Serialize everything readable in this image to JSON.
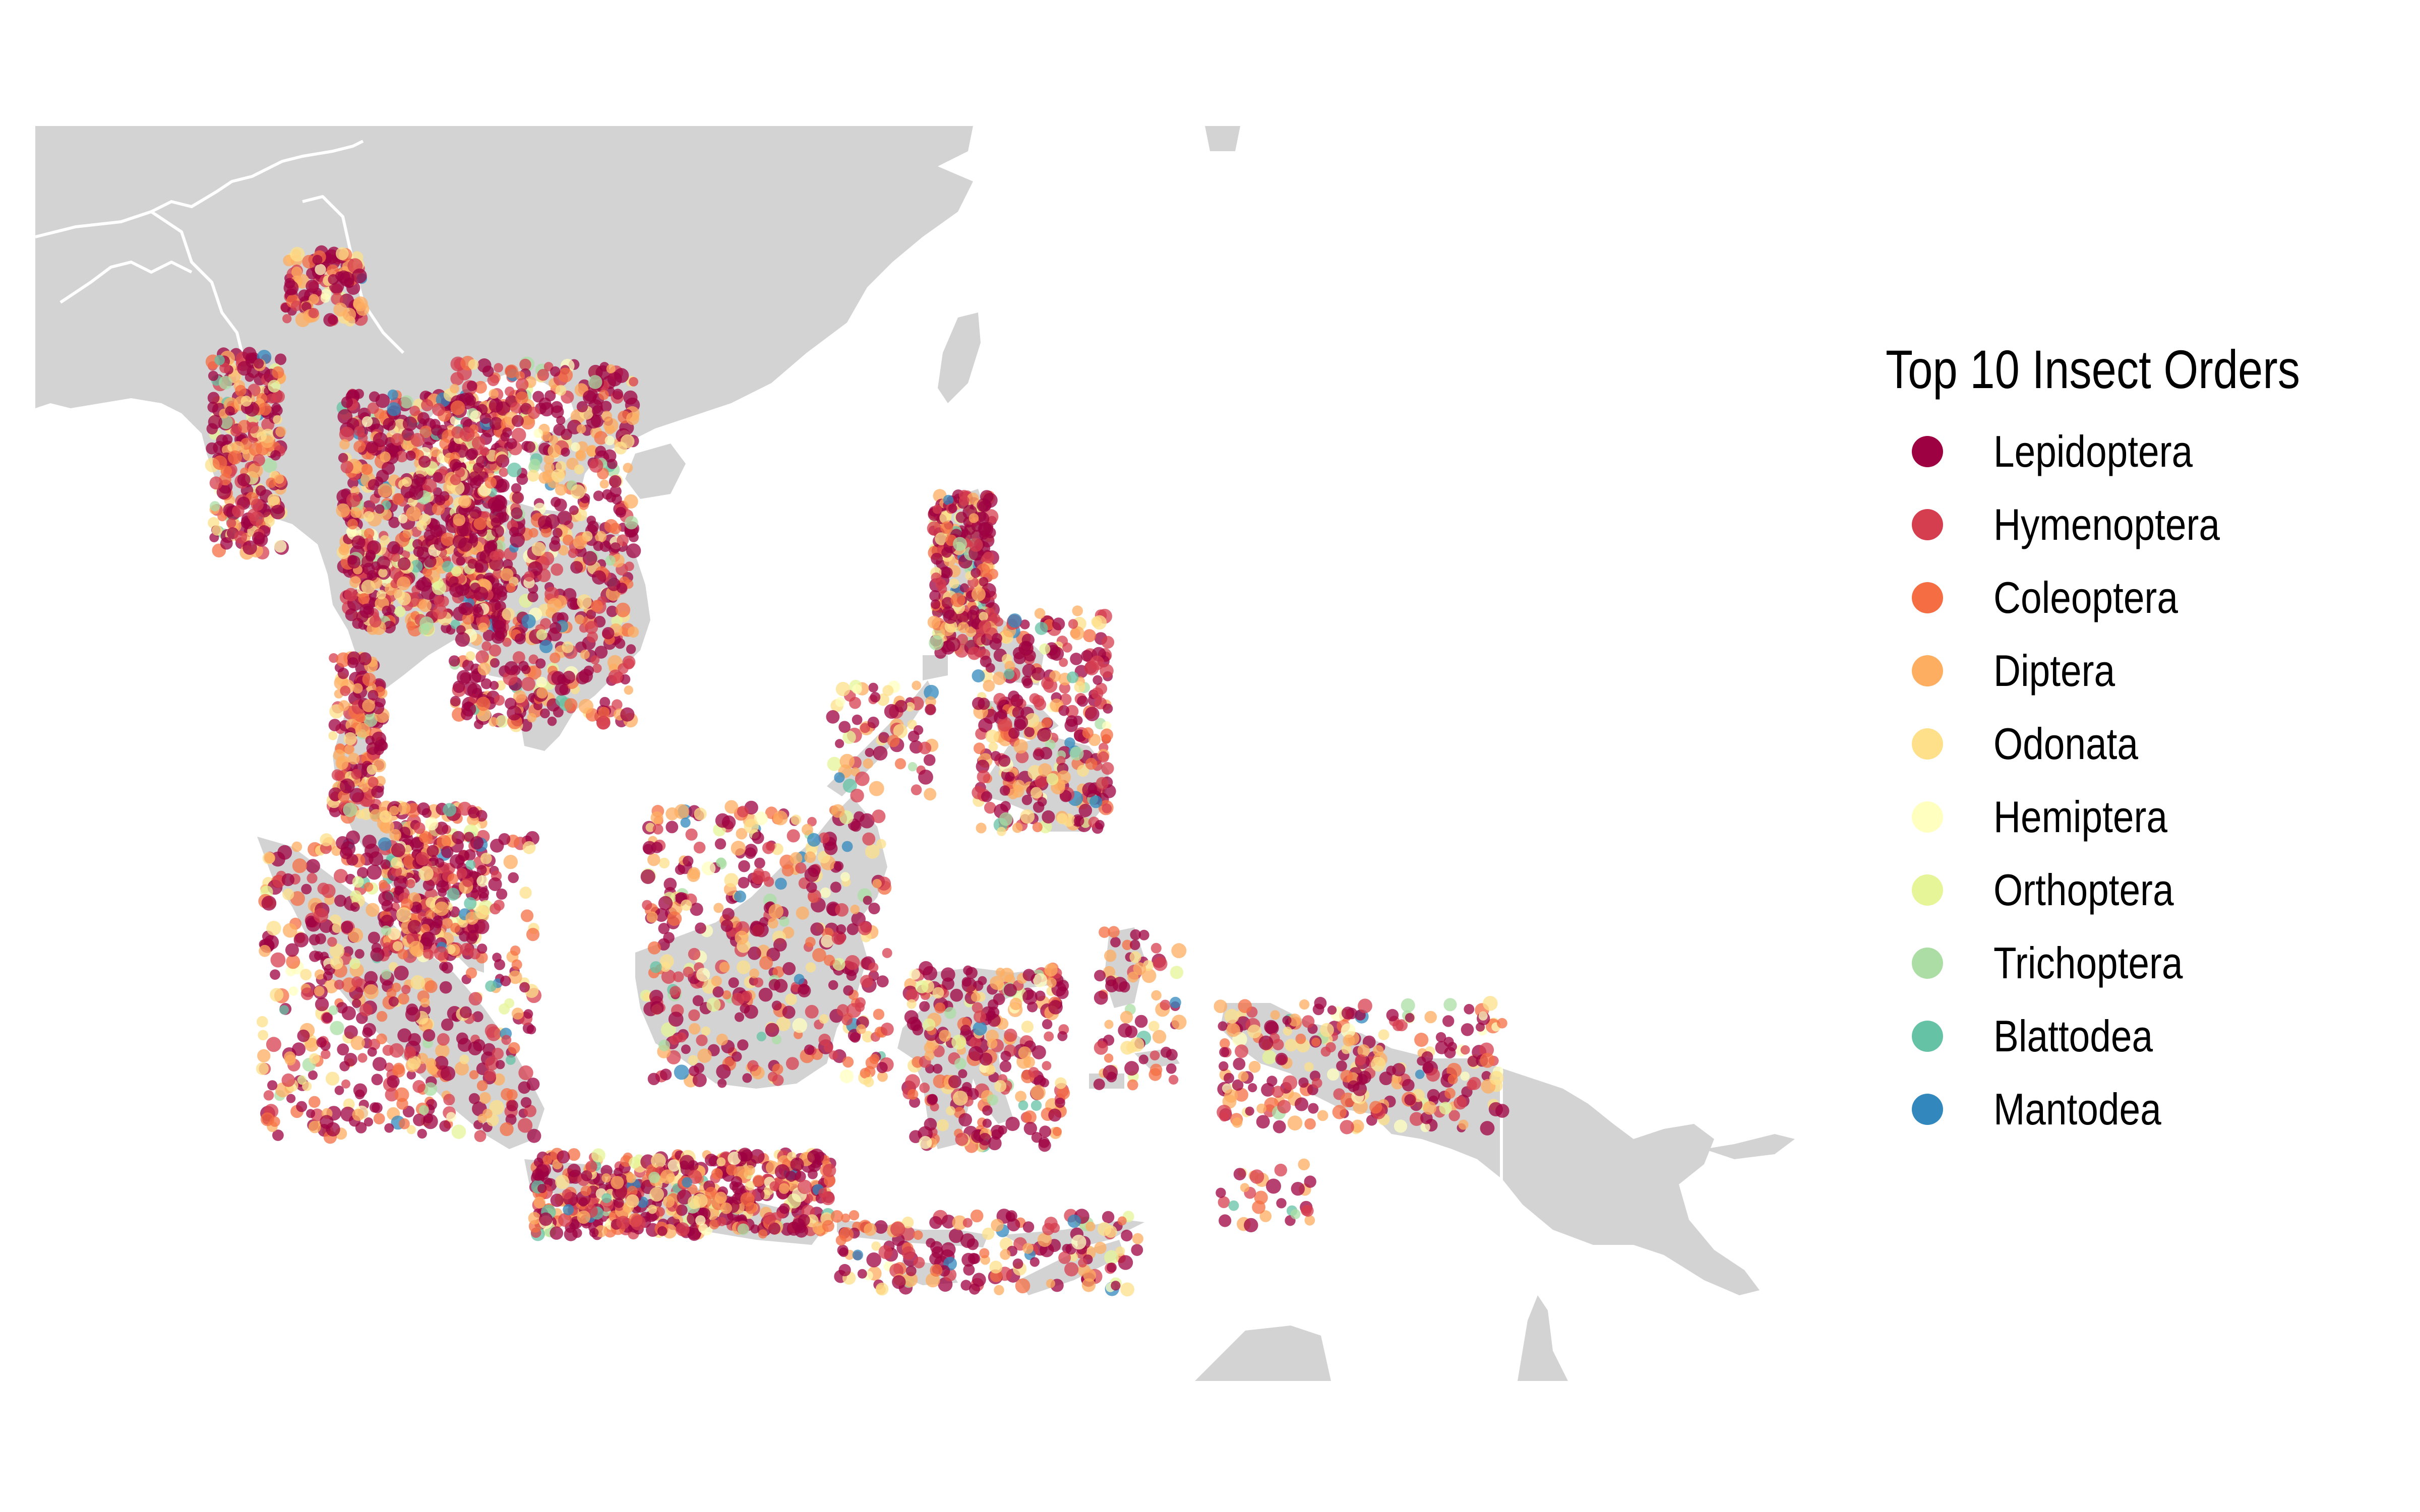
{
  "legend": {
    "title": "Top 10 Insect Orders",
    "items": [
      {
        "label": "Lepidoptera",
        "color": "#9e0142"
      },
      {
        "label": "Hymenoptera",
        "color": "#d53e4f"
      },
      {
        "label": "Coleoptera",
        "color": "#f46d43"
      },
      {
        "label": "Diptera",
        "color": "#fdae61"
      },
      {
        "label": "Odonata",
        "color": "#fee08b"
      },
      {
        "label": "Hemiptera",
        "color": "#ffffbf"
      },
      {
        "label": "Orthoptera",
        "color": "#e6f598"
      },
      {
        "label": "Trichoptera",
        "color": "#abdda4"
      },
      {
        "label": "Blattodea",
        "color": "#66c2a5"
      },
      {
        "label": "Mantodea",
        "color": "#3288bd"
      }
    ]
  },
  "colors": {
    "land": "#d3d3d3",
    "border": "#ffffff",
    "background": "#ffffff"
  }
}
